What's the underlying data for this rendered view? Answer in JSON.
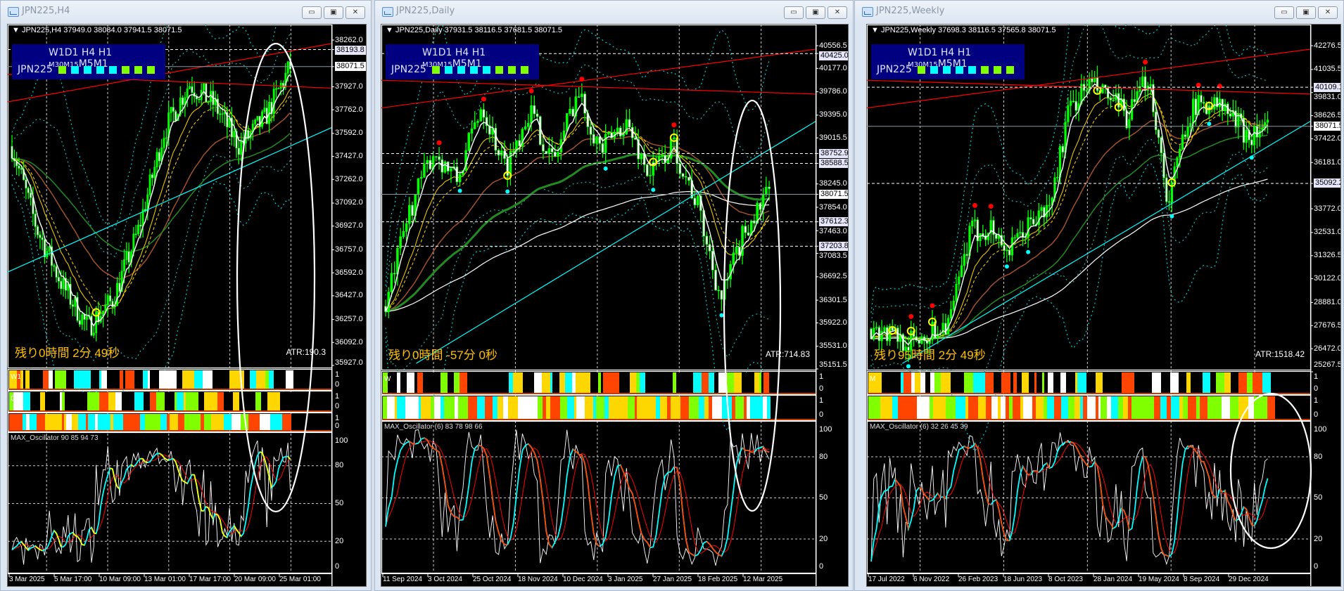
{
  "windows": [
    {
      "title": "JPN225,H4",
      "header": "JPN225,H4  37949.0 38084.0 37941.5 38071.5",
      "buttons": {
        "minimize": "▭",
        "maximize": "▣",
        "close": "✕"
      },
      "info_panel": {
        "timeframes_main": "W1D1 H4 H1 ",
        "timeframes_small": "M30M15",
        "timeframes_tail": "M5M1",
        "symbol": "JPN225",
        "square_colors": [
          "#7fff00",
          "#00ffff",
          "#00ffff",
          "#00ffff",
          "#00ffff",
          "#7fff00",
          "#7fff00",
          "#7fff00"
        ]
      },
      "price_ticks": [
        "38262.0",
        "37927.0",
        "37762.0",
        "37592.0",
        "37427.0",
        "37262.0",
        "37092.0",
        "36927.0",
        "36757.0",
        "36592.0",
        "36427.0",
        "36257.0",
        "36092.0",
        "35927.0"
      ],
      "highlighted_prices": [
        "38193.8"
      ],
      "current_price": "38071.5",
      "countdown": "残り0時間 2分 49秒",
      "atr": "ATR:190.3",
      "panes": [
        {
          "label": "W1",
          "scale": [
            "1",
            "0"
          ]
        },
        {
          "label": "D1",
          "scale": [
            "1",
            "0"
          ]
        },
        {
          "label": "",
          "scale": [
            "1",
            "0"
          ]
        }
      ],
      "oscillator": {
        "label": "MAX_Oscillator 90 85 94 73",
        "scale": [
          "100",
          "80",
          "50",
          "20",
          "0"
        ]
      },
      "dates": [
        "3 Mar 2025",
        "5 Mar 17:00",
        "10 Mar 09:00",
        "13 Mar 01:00",
        "17 Mar 17:00",
        "20 Mar 09:00",
        "25 Mar 01:00"
      ]
    },
    {
      "title": "JPN225,Daily",
      "header": "JPN225,Daily  37931.5 38116.5 37681.5 38071.5",
      "buttons": {
        "minimize": "▭",
        "maximize": "▣",
        "close": "✕"
      },
      "info_panel": {
        "timeframes_main": "W1D1 H4 H1 ",
        "timeframes_small": "M30M15",
        "timeframes_tail": "M5M1",
        "symbol": "JPN225",
        "square_colors": [
          "#7fff00",
          "#00ffff",
          "#00ffff",
          "#00ffff",
          "#00ffff",
          "#7fff00",
          "#7fff00",
          "#7fff00"
        ]
      },
      "price_ticks": [
        "40556.5",
        "40177.0",
        "39786.0",
        "39395.0",
        "39015.5",
        "38245.0",
        "37854.0",
        "37463.0",
        "37083.5",
        "36692.5",
        "36301.5",
        "35922.0",
        "35531.0",
        "35151.5"
      ],
      "highlighted_prices": [
        "40425.0",
        "38752.9",
        "38588.5",
        "37612.3",
        "37203.8"
      ],
      "current_price": "38071.5",
      "countdown": "残り0時間 -57分 0秒",
      "atr": "ATR:714.83",
      "panes": [
        {
          "label": "W",
          "scale": [
            "1",
            "0"
          ]
        },
        {
          "label": "",
          "scale": [
            "1",
            "0"
          ]
        }
      ],
      "oscillator": {
        "label": "MAX_Oscillator (6) 83 78 98 66",
        "scale": [
          "100",
          "80",
          "50",
          "20",
          "0"
        ]
      },
      "dates": [
        "11 Sep 2024",
        "3 Oct 2024",
        "25 Oct 2024",
        "18 Nov 2024",
        "10 Dec 2024",
        "3 Jan 2025",
        "27 Jan 2025",
        "18 Feb 2025",
        "12 Mar 2025"
      ]
    },
    {
      "title": "JPN225,Weekly",
      "header": "JPN225,Weekly  37698.3 38116.5 37565.8 38071.5",
      "buttons": {
        "minimize": "▭",
        "maximize": "▣",
        "close": "✕"
      },
      "info_panel": {
        "timeframes_main": "W1D1 H4 H1 ",
        "timeframes_small": "M30M15",
        "timeframes_tail": "M5M1",
        "symbol": "JPN225",
        "square_colors": [
          "#7fff00",
          "#00ffff",
          "#00ffff",
          "#00ffff",
          "#00ffff",
          "#7fff00",
          "#7fff00",
          "#7fff00"
        ]
      },
      "price_ticks": [
        "42276.5",
        "41035.5",
        "39831.0",
        "38626.5",
        "37422.0",
        "36181.0",
        "33772.0",
        "32531.0",
        "31326.5",
        "30122.0",
        "28881.0",
        "27676.5",
        "26472.0",
        "25267.5"
      ],
      "highlighted_prices": [
        "40109.1",
        "35092.2"
      ],
      "current_price": "38071.5",
      "countdown": "残り95時間 2分 49秒",
      "atr": "ATR:1518.42",
      "panes": [
        {
          "label": "M",
          "scale": [
            "1",
            "0"
          ]
        },
        {
          "label": "",
          "scale": [
            "1",
            "0"
          ]
        }
      ],
      "oscillator": {
        "label": "MAX_Oscillator (6) 32 26 45 39",
        "scale": [
          "100",
          "80",
          "50",
          "20",
          "0"
        ]
      },
      "dates": [
        "17 Jul 2022",
        "6 Nov 2022",
        "26 Feb 2023",
        "18 Jun 2023",
        "8 Oct 2023",
        "28 Jan 2024",
        "19 May 2024",
        "8 Sep 2024",
        "29 Dec 2024"
      ]
    }
  ],
  "colors": {
    "bull_candle": "#00ff00",
    "stripe_palette": [
      "#ff4500",
      "#ffffff",
      "#7fff00",
      "#00ffff",
      "#ffd700",
      "#000000"
    ],
    "trendline": "#ff0000",
    "band": "#00ced1",
    "countdown": "#ffc000",
    "info_panel_bg": "#000080"
  }
}
